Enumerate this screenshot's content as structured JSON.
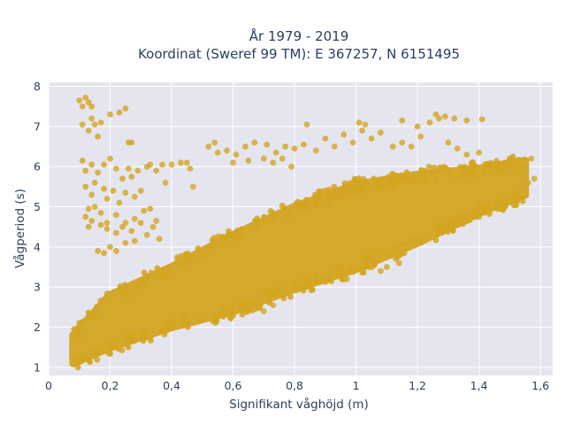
{
  "chart_data": {
    "type": "scatter",
    "title_line1": "År 1979 - 2019",
    "title_line2": "Koordinat (Sweref 99 TM): E 367257, N 6151495",
    "xlabel": "Signifikant våghöjd (m)",
    "ylabel": "Vågperiod (s)",
    "xlim": [
      0,
      1.64
    ],
    "ylim": [
      0.8,
      8.1
    ],
    "xticks": [
      0,
      0.2,
      0.4,
      0.6,
      0.8,
      1.0,
      1.2,
      1.4,
      1.6
    ],
    "xtick_labels": [
      "0",
      "0,2",
      "0,4",
      "0,6",
      "0,8",
      "1",
      "1,2",
      "1,4",
      "1,6"
    ],
    "yticks": [
      1,
      2,
      3,
      4,
      5,
      6,
      7,
      8
    ],
    "ytick_labels": [
      "1",
      "2",
      "3",
      "4",
      "5",
      "6",
      "7",
      "8"
    ],
    "grid": true,
    "background_color": "#e5e5ef",
    "marker_color": "#d4a520",
    "dense_band": {
      "lower_edge": [
        [
          0.08,
          1.1
        ],
        [
          0.2,
          1.5
        ],
        [
          0.4,
          2.0
        ],
        [
          0.6,
          2.4
        ],
        [
          0.8,
          2.95
        ],
        [
          1.0,
          3.45
        ],
        [
          1.2,
          4.1
        ],
        [
          1.4,
          4.85
        ],
        [
          1.55,
          5.3
        ]
      ],
      "upper_edge": [
        [
          0.08,
          1.8
        ],
        [
          0.2,
          2.8
        ],
        [
          0.4,
          3.5
        ],
        [
          0.6,
          4.3
        ],
        [
          0.8,
          5.0
        ],
        [
          1.0,
          5.55
        ],
        [
          1.2,
          5.8
        ],
        [
          1.4,
          5.95
        ],
        [
          1.55,
          6.15
        ]
      ]
    },
    "points": [
      [
        0.1,
        7.65
      ],
      [
        0.11,
        7.5
      ],
      [
        0.12,
        7.72
      ],
      [
        0.13,
        7.6
      ],
      [
        0.14,
        7.5
      ],
      [
        0.11,
        7.05
      ],
      [
        0.13,
        6.9
      ],
      [
        0.15,
        7.05
      ],
      [
        0.16,
        6.75
      ],
      [
        0.2,
        7.3
      ],
      [
        0.23,
        7.35
      ],
      [
        0.25,
        7.45
      ],
      [
        0.26,
        6.6
      ],
      [
        0.27,
        6.6
      ],
      [
        0.14,
        7.2
      ],
      [
        0.17,
        7.1
      ],
      [
        0.11,
        6.15
      ],
      [
        0.12,
        5.9
      ],
      [
        0.14,
        6.05
      ],
      [
        0.16,
        5.85
      ],
      [
        0.18,
        6.05
      ],
      [
        0.2,
        6.2
      ],
      [
        0.22,
        5.95
      ],
      [
        0.24,
        5.7
      ],
      [
        0.26,
        5.95
      ],
      [
        0.27,
        5.75
      ],
      [
        0.29,
        5.9
      ],
      [
        0.32,
        6.0
      ],
      [
        0.33,
        6.05
      ],
      [
        0.35,
        5.9
      ],
      [
        0.37,
        6.05
      ],
      [
        0.38,
        5.6
      ],
      [
        0.4,
        6.05
      ],
      [
        0.43,
        6.1
      ],
      [
        0.45,
        6.1
      ],
      [
        0.46,
        5.95
      ],
      [
        0.12,
        5.5
      ],
      [
        0.14,
        5.3
      ],
      [
        0.15,
        5.6
      ],
      [
        0.18,
        5.45
      ],
      [
        0.19,
        5.2
      ],
      [
        0.21,
        5.4
      ],
      [
        0.23,
        5.1
      ],
      [
        0.25,
        5.35
      ],
      [
        0.28,
        5.25
      ],
      [
        0.3,
        5.4
      ],
      [
        0.13,
        4.95
      ],
      [
        0.15,
        5.0
      ],
      [
        0.17,
        4.85
      ],
      [
        0.19,
        4.6
      ],
      [
        0.22,
        4.8
      ],
      [
        0.25,
        4.6
      ],
      [
        0.28,
        4.7
      ],
      [
        0.31,
        4.9
      ],
      [
        0.33,
        4.95
      ],
      [
        0.35,
        4.65
      ],
      [
        0.13,
        4.5
      ],
      [
        0.14,
        4.65
      ],
      [
        0.17,
        4.55
      ],
      [
        0.19,
        4.45
      ],
      [
        0.22,
        4.35
      ],
      [
        0.24,
        4.5
      ],
      [
        0.27,
        4.4
      ],
      [
        0.3,
        4.6
      ],
      [
        0.34,
        4.5
      ],
      [
        0.12,
        4.75
      ],
      [
        0.16,
        3.9
      ],
      [
        0.18,
        3.85
      ],
      [
        0.2,
        4.0
      ],
      [
        0.22,
        3.9
      ],
      [
        0.25,
        4.1
      ],
      [
        0.28,
        4.15
      ],
      [
        0.32,
        4.3
      ],
      [
        0.36,
        4.2
      ],
      [
        0.47,
        5.5
      ],
      [
        0.52,
        6.5
      ],
      [
        0.55,
        6.35
      ],
      [
        0.58,
        6.4
      ],
      [
        0.61,
        6.3
      ],
      [
        0.64,
        6.5
      ],
      [
        0.67,
        6.6
      ],
      [
        0.71,
        6.55
      ],
      [
        0.74,
        6.35
      ],
      [
        0.77,
        6.5
      ],
      [
        0.8,
        6.45
      ],
      [
        0.83,
        6.55
      ],
      [
        0.87,
        6.4
      ],
      [
        0.9,
        6.7
      ],
      [
        0.93,
        6.5
      ],
      [
        0.96,
        6.8
      ],
      [
        0.99,
        6.6
      ],
      [
        1.02,
        6.9
      ],
      [
        1.05,
        6.7
      ],
      [
        1.08,
        6.85
      ],
      [
        1.12,
        6.5
      ],
      [
        1.15,
        6.6
      ],
      [
        1.18,
        6.5
      ],
      [
        1.21,
        6.75
      ],
      [
        1.24,
        7.1
      ],
      [
        1.27,
        7.2
      ],
      [
        1.3,
        6.6
      ],
      [
        1.33,
        6.45
      ],
      [
        1.36,
        6.3
      ],
      [
        1.4,
        6.35
      ],
      [
        0.54,
        6.6
      ],
      [
        0.6,
        6.1
      ],
      [
        0.65,
        6.15
      ],
      [
        0.7,
        6.2
      ],
      [
        0.73,
        6.1
      ],
      [
        0.76,
        6.2
      ],
      [
        0.79,
        6.0
      ],
      [
        0.84,
        7.05
      ],
      [
        1.01,
        7.1
      ],
      [
        1.03,
        7.05
      ],
      [
        1.15,
        7.15
      ],
      [
        1.2,
        7.0
      ],
      [
        1.26,
        7.3
      ],
      [
        1.29,
        7.25
      ],
      [
        1.32,
        7.2
      ],
      [
        1.36,
        7.15
      ],
      [
        1.41,
        7.18
      ],
      [
        0.62,
        2.45
      ],
      [
        0.65,
        2.4
      ],
      [
        0.68,
        2.5
      ],
      [
        0.7,
        2.4
      ],
      [
        0.73,
        2.55
      ],
      [
        0.55,
        2.3
      ],
      [
        0.58,
        2.45
      ],
      [
        0.6,
        2.5
      ],
      [
        1.0,
        3.45
      ],
      [
        1.03,
        3.5
      ],
      [
        1.06,
        3.55
      ],
      [
        1.08,
        3.4
      ],
      [
        1.1,
        3.5
      ],
      [
        1.14,
        3.6
      ],
      [
        0.95,
        3.35
      ],
      [
        0.97,
        3.2
      ],
      [
        1.5,
        6.2
      ],
      [
        1.52,
        6.1
      ],
      [
        1.55,
        6.0
      ],
      [
        1.57,
        6.2
      ],
      [
        1.53,
        5.9
      ],
      [
        1.56,
        5.6
      ],
      [
        1.58,
        5.7
      ],
      [
        1.54,
        5.5
      ]
    ]
  }
}
